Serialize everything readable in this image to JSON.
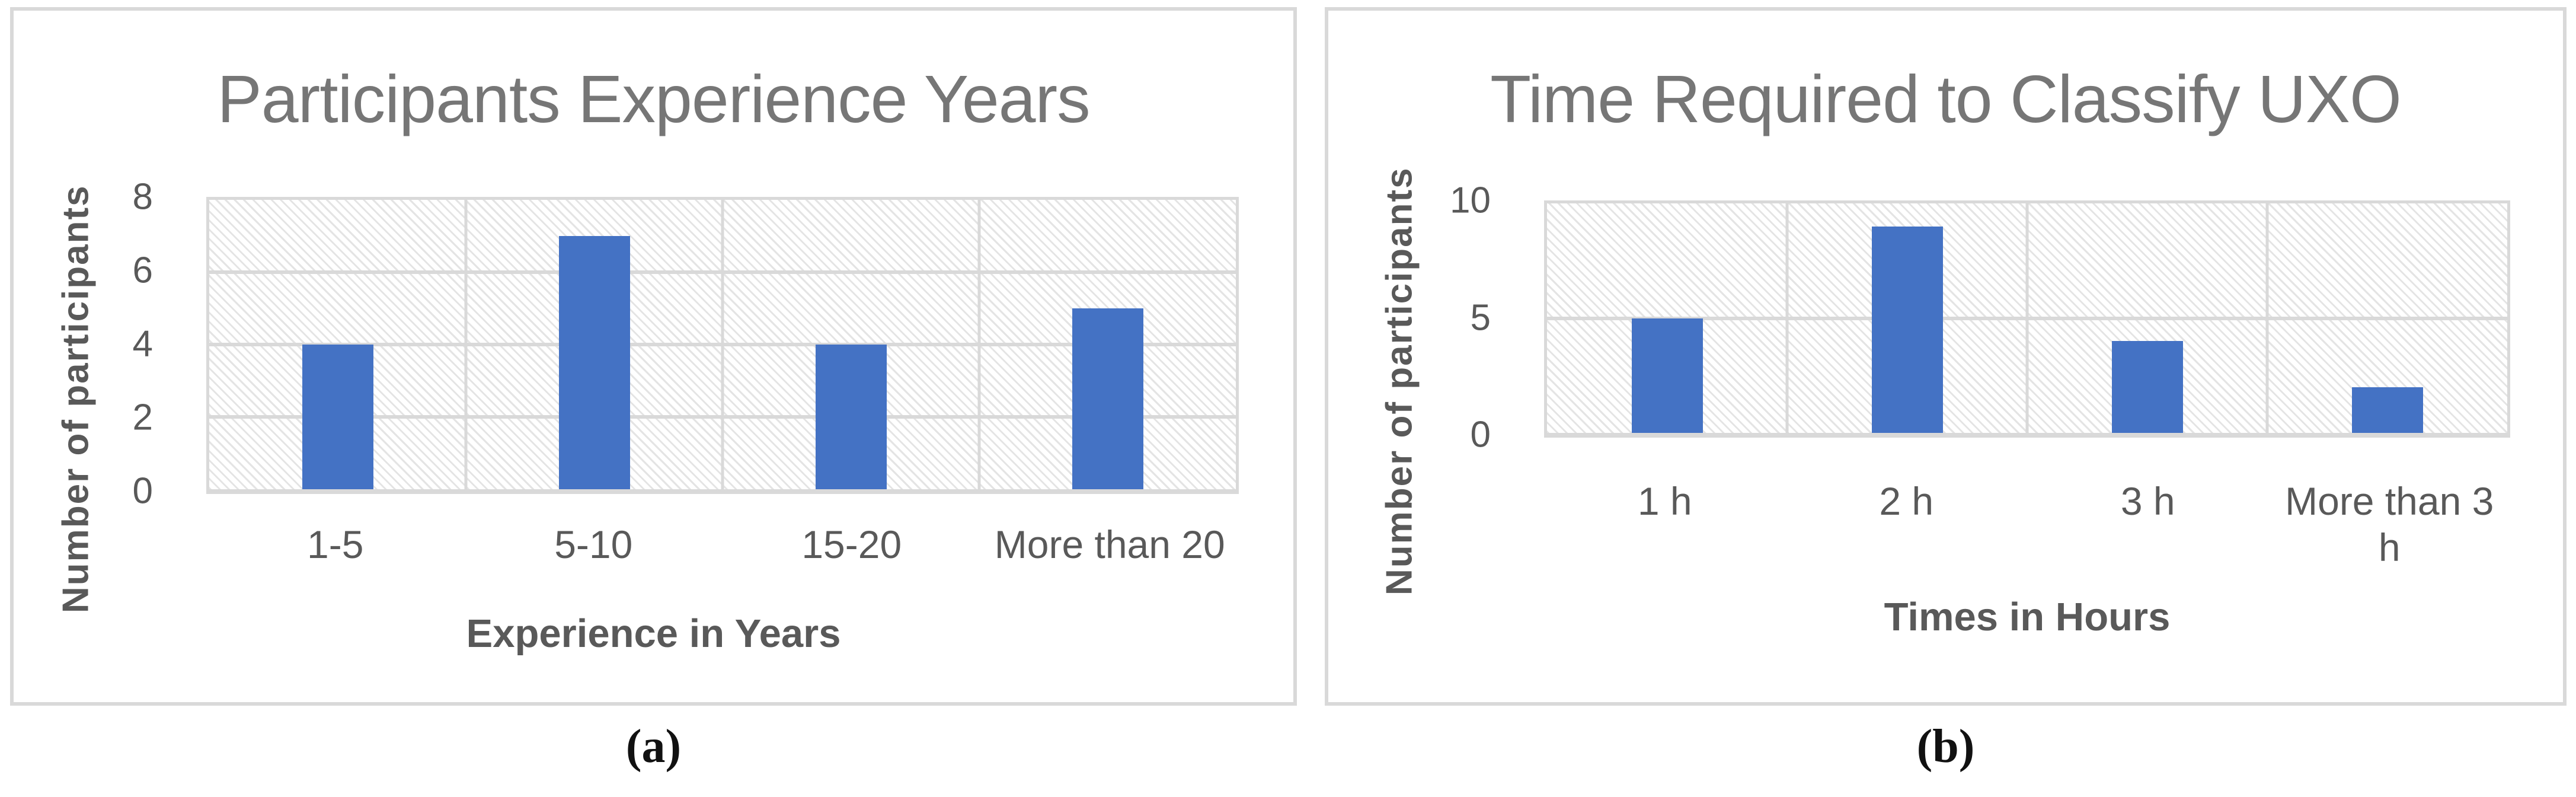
{
  "figure": {
    "captions": [
      {
        "label": "(a)"
      },
      {
        "label": "(b)"
      }
    ]
  },
  "colors": {
    "bar": "#4472c4",
    "grid": "#d9d9d9",
    "hatch": "#e4e4e4",
    "title_text": "#767676",
    "axis_text": "#595959",
    "panel_border": "#d9d9d9",
    "caption_text": "#111111"
  },
  "chart_data": [
    {
      "type": "bar",
      "title": "Participants Experience Years",
      "categories": [
        "1-5",
        "5-10",
        "15-20",
        "More than 20"
      ],
      "values": [
        4,
        7,
        4,
        5
      ],
      "xlabel": "Experience in Years",
      "ylabel": "Number of participants",
      "ylim": [
        0,
        8
      ],
      "yticks": [
        0,
        2,
        4,
        6,
        8
      ],
      "grid": true,
      "legend": false,
      "plot_background": "diagonal-hatch"
    },
    {
      "type": "bar",
      "title": "Time Required to Classify UXO",
      "categories": [
        "1 h",
        "2 h",
        "3 h",
        "More than 3 h"
      ],
      "values": [
        5,
        9,
        4,
        2
      ],
      "xlabel": "Times in Hours",
      "ylabel": "Number of participants",
      "ylim": [
        0,
        10
      ],
      "yticks": [
        0,
        5,
        10
      ],
      "grid": true,
      "legend": false,
      "plot_background": "diagonal-hatch"
    }
  ]
}
